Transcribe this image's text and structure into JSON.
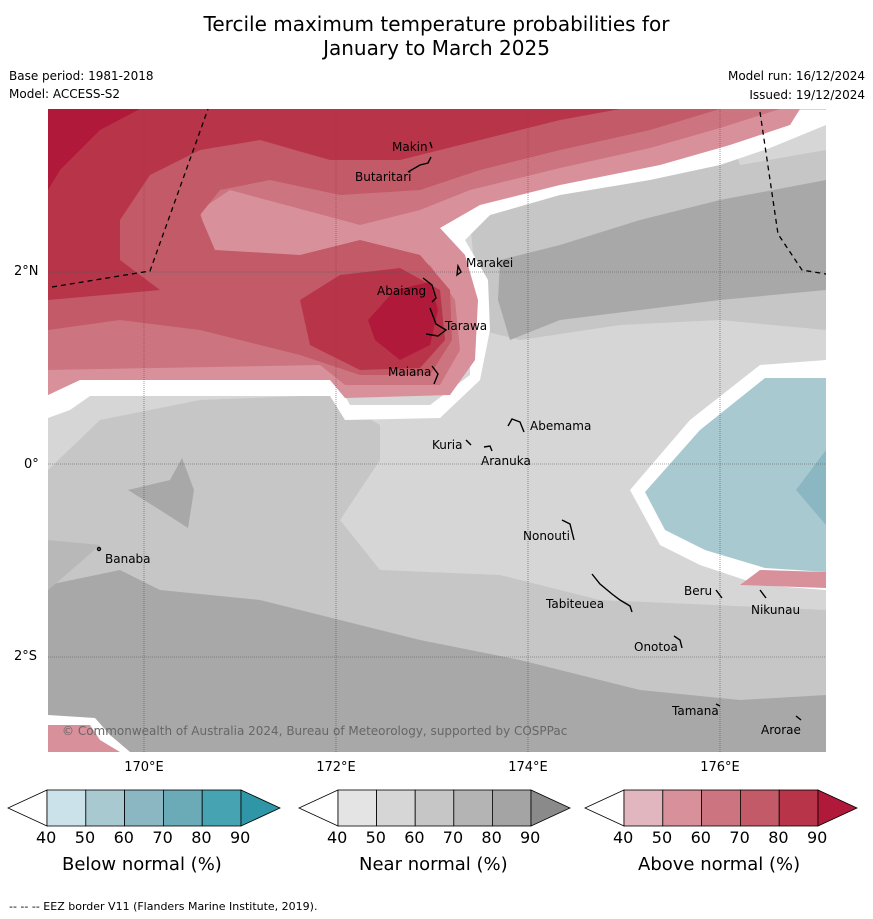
{
  "title_line1": "Tercile maximum temperature probabilities for",
  "title_line2": "January to March 2025",
  "base_period": "Base period: 1981-2018",
  "model": "Model: ACCESS-S2",
  "model_run": "Model run: 16/12/2024",
  "issued": "Issued: 19/12/2024",
  "copyright": "© Commonwealth of Australia 2024, Bureau of Meteorology, supported by COSPPac",
  "footer": "--  --  -- EEZ border V11 (Flanders Marine Institute, 2019).",
  "lon_labels": [
    "170°E",
    "172°E",
    "174°E",
    "176°E"
  ],
  "lat_labels": [
    "2°N",
    "0°",
    "2°S"
  ],
  "places": {
    "makin": "Makin",
    "butaritari": "Butaritari",
    "marakei": "Marakei",
    "abaiang": "Abaiang",
    "tarawa": "Tarawa",
    "maiana": "Maiana",
    "abemama": "Abemama",
    "kuria": "Kuria",
    "aranuka": "Aranuka",
    "banaba": "Banaba",
    "nonouti": "Nonouti",
    "tabiteuea": "Tabiteuea",
    "beru": "Beru",
    "nikunau": "Nikunau",
    "onotoa": "Onotoa",
    "tamana": "Tamana",
    "arorae": "Arorae"
  },
  "colorbars": {
    "below": {
      "title": "Below normal (%)",
      "ticks": [
        "40",
        "50",
        "60",
        "70",
        "80",
        "90"
      ],
      "colors": [
        "#cce2ea",
        "#a9c9d0",
        "#8ab7c2",
        "#6aabb7",
        "#46a4b2",
        "#2e96a6"
      ]
    },
    "near": {
      "title": "Near normal (%)",
      "ticks": [
        "40",
        "50",
        "60",
        "70",
        "80",
        "90"
      ],
      "colors": [
        "#e4e4e4",
        "#d6d6d6",
        "#c6c6c6",
        "#b4b4b4",
        "#a4a4a4",
        "#8a8a8a"
      ]
    },
    "above": {
      "title": "Above normal (%)",
      "ticks": [
        "40",
        "50",
        "60",
        "70",
        "80",
        "90"
      ],
      "colors": [
        "#e2b6bf",
        "#d8909b",
        "#cc7580",
        "#c25a68",
        "#b83449",
        "#b0193a"
      ]
    }
  },
  "colors": {
    "above_max": "#b2193a",
    "near_base": "#d6d6d6",
    "below_base": "#a9c9d0"
  }
}
